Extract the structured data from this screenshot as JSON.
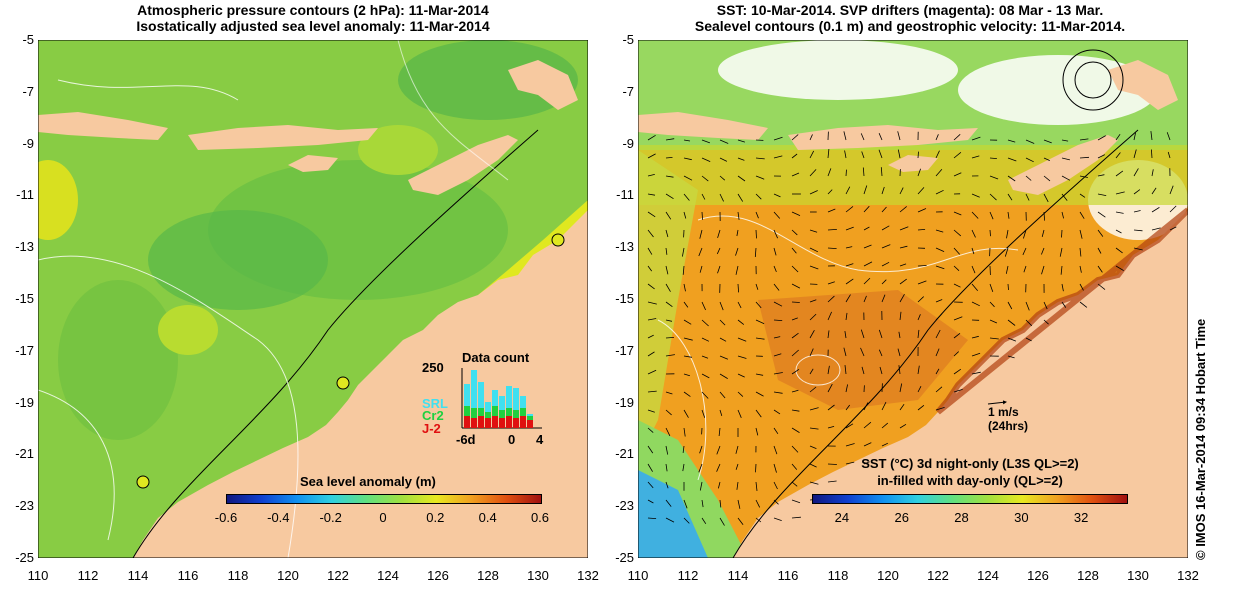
{
  "left_panel": {
    "title_line1": "Atmospheric pressure contours (2 hPa): 11-Mar-2014",
    "title_line2": "Isostatically adjusted sea level anomaly: 11-Mar-2014",
    "colorbar_label": "Sea level anomaly (m)",
    "colorbar_ticks": [
      "-0.6",
      "-0.4",
      "-0.2",
      "0",
      "0.2",
      "0.4",
      "0.6"
    ],
    "data_count": {
      "title": "Data count",
      "ymax_label": "250",
      "x_labels": [
        "-6d",
        "0",
        "4"
      ],
      "legend": [
        {
          "label": "SRL",
          "color": "#40e0f0"
        },
        {
          "label": "Cr2",
          "color": "#20d040"
        },
        {
          "label": "J-2",
          "color": "#e01010"
        }
      ]
    }
  },
  "right_panel": {
    "title_line1": "SST: 10-Mar-2014. SVP drifters (magenta): 08 Mar - 13 Mar.",
    "title_line2": "Sealevel contours (0.1 m) and geostrophic velocity: 11-Mar-2014.",
    "velocity_scale_label": "1 m/s",
    "velocity_scale_sublabel": "(24hrs)",
    "colorbar_label_line1": "SST (°C)  3d night-only (L3S QL>=2)",
    "colorbar_label_line2": "in-filled with day-only (QL>=2)",
    "colorbar_ticks": [
      "24",
      "26",
      "28",
      "30",
      "32"
    ]
  },
  "axes": {
    "y_ticks": [
      "-5",
      "-7",
      "-9",
      "-11",
      "-13",
      "-15",
      "-17",
      "-19",
      "-21",
      "-23",
      "-25"
    ],
    "x_ticks": [
      "110",
      "112",
      "114",
      "116",
      "118",
      "120",
      "122",
      "124",
      "126",
      "128",
      "130",
      "132"
    ]
  },
  "credit": "© IMOS 16-Mar-2014 09:34 Hobart Time",
  "colors": {
    "land": "#f7c9a0",
    "ocean_sla": "#8ed040",
    "sst_warm": "#f0a020",
    "sst_cool": "#90d850"
  }
}
